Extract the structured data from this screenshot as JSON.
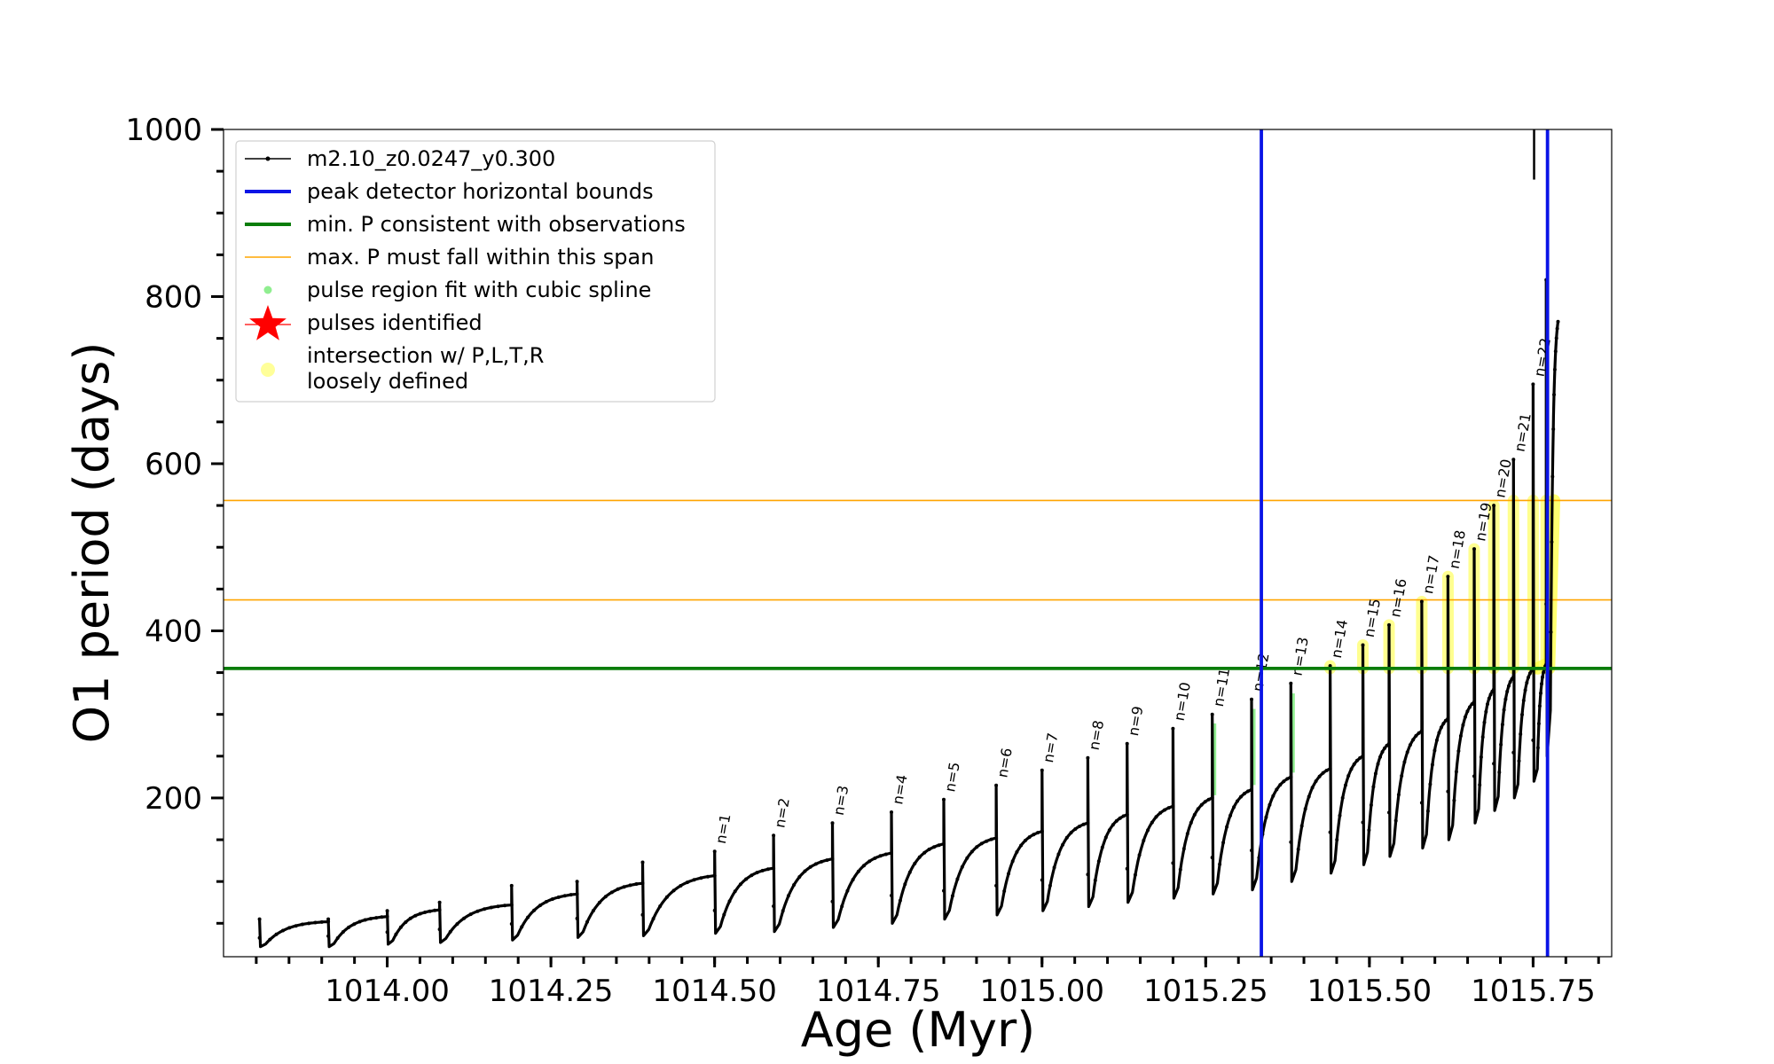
{
  "chart_data": {
    "type": "line",
    "xlabel": "Age (Myr)",
    "ylabel": "O1 period (days)",
    "xlim": [
      1013.75,
      1015.87
    ],
    "ylim": [
      10,
      1000
    ],
    "x_ticks": [
      1014.0,
      1014.25,
      1014.5,
      1014.75,
      1015.0,
      1015.25,
      1015.5,
      1015.75
    ],
    "x_tick_labels": [
      "1014.00",
      "1014.25",
      "1014.50",
      "1014.75",
      "1015.00",
      "1015.25",
      "1015.50",
      "1015.75"
    ],
    "y_ticks": [
      200,
      400,
      600,
      800,
      1000
    ],
    "y_tick_labels": [
      "200",
      "400",
      "600",
      "800",
      "1000"
    ],
    "legend": {
      "position": "upper-left",
      "entries": [
        {
          "label": "m2.10_z0.0247_y0.300",
          "style": "line-dot",
          "color": "#000000"
        },
        {
          "label": "peak detector horizontal bounds",
          "style": "line",
          "color": "#0a14e6"
        },
        {
          "label": "min. P consistent with observations",
          "style": "line",
          "color": "#0a7d0a"
        },
        {
          "label": "max. P must fall within this span",
          "style": "thin-line",
          "color": "#ffa500"
        },
        {
          "label": "pulse region fit with cubic spline",
          "style": "dot",
          "color": "#90ee90"
        },
        {
          "label": "pulses identified",
          "style": "star",
          "color": "#ff0000"
        },
        {
          "label": "intersection w/ P,L,T,R",
          "label2": "loosely defined",
          "style": "dot",
          "color": "#ffff99"
        }
      ]
    },
    "reference_lines": {
      "vertical_bounds_x": [
        1015.335,
        1015.772
      ],
      "vertical_color": "#0a14e6",
      "min_period": 355,
      "min_period_color": "#0a7d0a",
      "max_period_span": [
        437,
        556
      ],
      "max_period_color": "#ffa500"
    },
    "series": [
      {
        "name": "m2.10_z0.0247_y0.300",
        "color": "#000000",
        "pulses": [
          {
            "start": 1013.805,
            "floor": 22,
            "peak": 55,
            "end": 52
          },
          {
            "start": 1013.91,
            "floor": 22,
            "peak": 55,
            "end": 58
          },
          {
            "start": 1014.0,
            "floor": 25,
            "peak": 65,
            "end": 66
          },
          {
            "start": 1014.08,
            "floor": 27,
            "peak": 75,
            "end": 72
          },
          {
            "start": 1014.19,
            "floor": 30,
            "peak": 95,
            "end": 85
          },
          {
            "start": 1014.29,
            "floor": 33,
            "peak": 100,
            "end": 98
          },
          {
            "start": 1014.39,
            "floor": 35,
            "peak": 123,
            "end": 107
          },
          {
            "start": 1014.5,
            "floor": 38,
            "peak": 136,
            "end": 116,
            "label": "n=1"
          },
          {
            "start": 1014.59,
            "floor": 40,
            "peak": 155,
            "end": 127,
            "label": "n=2"
          },
          {
            "start": 1014.68,
            "floor": 45,
            "peak": 170,
            "end": 134,
            "label": "n=3"
          },
          {
            "start": 1014.77,
            "floor": 50,
            "peak": 183,
            "end": 145,
            "label": "n=4"
          },
          {
            "start": 1014.85,
            "floor": 55,
            "peak": 198,
            "end": 152,
            "label": "n=5"
          },
          {
            "start": 1014.93,
            "floor": 60,
            "peak": 215,
            "end": 160,
            "label": "n=6"
          },
          {
            "start": 1015.0,
            "floor": 65,
            "peak": 233,
            "end": 170,
            "label": "n=7"
          },
          {
            "start": 1015.07,
            "floor": 70,
            "peak": 248,
            "end": 180,
            "label": "n=8"
          },
          {
            "start": 1015.13,
            "floor": 75,
            "peak": 265,
            "end": 190,
            "label": "n=9"
          },
          {
            "start": 1015.2,
            "floor": 80,
            "peak": 283,
            "end": 200,
            "label": "n=10"
          },
          {
            "start": 1015.26,
            "floor": 85,
            "peak": 300,
            "end": 210,
            "label": "n=11"
          },
          {
            "start": 1015.32,
            "floor": 90,
            "peak": 318,
            "end": 225,
            "label": "n=12"
          },
          {
            "start": 1015.38,
            "floor": 100,
            "peak": 337,
            "end": 235,
            "label": "n=13"
          },
          {
            "start": 1015.44,
            "floor": 110,
            "peak": 358,
            "end": 250,
            "label": "n=14"
          },
          {
            "start": 1015.49,
            "floor": 120,
            "peak": 383,
            "end": 265,
            "label": "n=15"
          },
          {
            "start": 1015.53,
            "floor": 130,
            "peak": 407,
            "end": 280,
            "label": "n=16"
          },
          {
            "start": 1015.58,
            "floor": 140,
            "peak": 435,
            "end": 295,
            "label": "n=17"
          },
          {
            "start": 1015.62,
            "floor": 150,
            "peak": 465,
            "end": 315,
            "label": "n=18"
          },
          {
            "start": 1015.66,
            "floor": 170,
            "peak": 498,
            "end": 330,
            "label": "n=19"
          },
          {
            "start": 1015.69,
            "floor": 185,
            "peak": 550,
            "end": 345,
            "label": "n=20"
          },
          {
            "start": 1015.72,
            "floor": 200,
            "peak": 605,
            "end": 355,
            "label": "n=21"
          },
          {
            "start": 1015.75,
            "floor": 220,
            "peak": 695,
            "end": 360,
            "label": "n=22"
          },
          {
            "start": 1015.77,
            "floor": 250,
            "peak": 820,
            "end": 770
          }
        ]
      }
    ]
  }
}
